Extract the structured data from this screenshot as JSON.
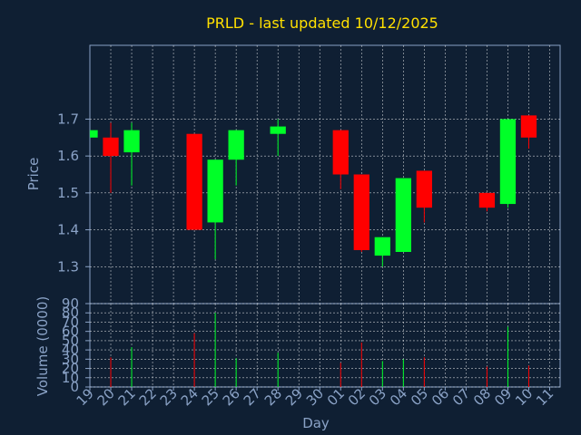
{
  "colors": {
    "background": "#0f1f33",
    "plot_background": "#0f1f33",
    "axis": "#8aa2c6",
    "grid": "#ffffff",
    "title": "#ffe000",
    "tick_text": "#8aa2c6",
    "label_text": "#8aa2c6",
    "up": "#00ff28",
    "down": "#ff0000"
  },
  "chart_data": [
    {
      "type": "candlestick",
      "title": "PRLD - last updated 10/12/2025",
      "ylabel": "Price",
      "ylim": [
        1.2,
        1.9
      ],
      "yticks": [
        1.3,
        1.4,
        1.5,
        1.6,
        1.7
      ],
      "yticks_text": [
        "1.3",
        "1.4",
        "1.5",
        "1.6",
        "1.7"
      ],
      "grid": true,
      "candles": [
        {
          "day": "19",
          "open": 1.65,
          "high": 1.67,
          "low": 1.65,
          "close": 1.67
        },
        {
          "day": "20",
          "open": 1.65,
          "high": 1.69,
          "low": 1.5,
          "close": 1.6
        },
        {
          "day": "21",
          "open": 1.61,
          "high": 1.69,
          "low": 1.52,
          "close": 1.67
        },
        {
          "day": "22"
        },
        {
          "day": "23"
        },
        {
          "day": "24",
          "open": 1.66,
          "high": 1.66,
          "low": 1.4,
          "close": 1.4
        },
        {
          "day": "25",
          "open": 1.42,
          "high": 1.59,
          "low": 1.32,
          "close": 1.59
        },
        {
          "day": "26",
          "open": 1.59,
          "high": 1.67,
          "low": 1.52,
          "close": 1.67
        },
        {
          "day": "27"
        },
        {
          "day": "28",
          "open": 1.66,
          "high": 1.7,
          "low": 1.6,
          "close": 1.68
        },
        {
          "day": "29"
        },
        {
          "day": "30"
        },
        {
          "day": "01",
          "open": 1.67,
          "high": 1.67,
          "low": 1.51,
          "close": 1.55
        },
        {
          "day": "02",
          "open": 1.55,
          "high": 1.55,
          "low": 1.34,
          "close": 1.345
        },
        {
          "day": "03",
          "open": 1.33,
          "high": 1.38,
          "low": 1.3,
          "close": 1.38
        },
        {
          "day": "04",
          "open": 1.34,
          "high": 1.54,
          "low": 1.34,
          "close": 1.54
        },
        {
          "day": "05",
          "open": 1.56,
          "high": 1.56,
          "low": 1.42,
          "close": 1.46
        },
        {
          "day": "06"
        },
        {
          "day": "07"
        },
        {
          "day": "08",
          "open": 1.5,
          "high": 1.5,
          "low": 1.45,
          "close": 1.46
        },
        {
          "day": "09",
          "open": 1.47,
          "high": 1.7,
          "low": 1.46,
          "close": 1.7
        },
        {
          "day": "10",
          "open": 1.71,
          "high": 1.71,
          "low": 1.62,
          "close": 1.65
        }
      ]
    },
    {
      "type": "bar",
      "ylabel": "Volume (0000)",
      "xlabel": "Day",
      "ylim": [
        0,
        90
      ],
      "yticks": [
        0,
        10,
        20,
        30,
        40,
        50,
        60,
        70,
        80,
        90
      ],
      "yticks_text": [
        "0",
        "10",
        "20",
        "30",
        "40",
        "50",
        "60",
        "70",
        "80",
        "90"
      ],
      "categories": [
        "19",
        "20",
        "21",
        "22",
        "23",
        "24",
        "25",
        "26",
        "27",
        "28",
        "29",
        "30",
        "01",
        "02",
        "03",
        "04",
        "05",
        "06",
        "07",
        "08",
        "09",
        "10",
        "11"
      ],
      "values": [
        0,
        32,
        43,
        0,
        0,
        58,
        80,
        31,
        0,
        37,
        0,
        0,
        26,
        48,
        28,
        30,
        32,
        0,
        0,
        22,
        65,
        23,
        0
      ]
    }
  ]
}
